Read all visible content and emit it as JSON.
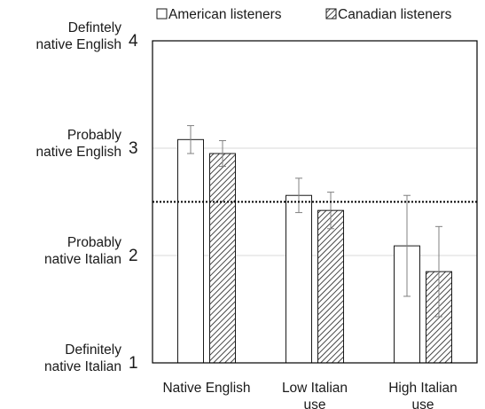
{
  "chart_data": {
    "type": "bar",
    "categories": [
      "Native English",
      "Low Italian use",
      "High Italian use"
    ],
    "series": [
      {
        "name": "American listeners",
        "values": [
          3.08,
          2.56,
          2.09
        ],
        "error": [
          0.13,
          0.16,
          0.47
        ],
        "fill": "#ffffff"
      },
      {
        "name": "Canadian listeners",
        "values": [
          2.95,
          2.42,
          1.85
        ],
        "error": [
          0.12,
          0.17,
          0.42
        ],
        "fill": "hatched"
      }
    ],
    "ylim": [
      1,
      4
    ],
    "yticks": [
      {
        "value": 4,
        "label": "4",
        "desc": [
          "Defintely",
          "native English"
        ]
      },
      {
        "value": 3,
        "label": "3",
        "desc": [
          "Probably",
          "native English"
        ]
      },
      {
        "value": 2,
        "label": "2",
        "desc": [
          "Probably",
          "native Italian"
        ]
      },
      {
        "value": 1,
        "label": "1",
        "desc": [
          "Definitely",
          "native Italian"
        ]
      }
    ],
    "reference_line": {
      "value": 2.5,
      "style": "dotted"
    },
    "grid": true,
    "legend_position": "top",
    "colors": {
      "axis": "#000000",
      "grid": "#d9d9d9",
      "bar_stroke": "#1a1a1a",
      "error_bar": "#808080"
    }
  }
}
